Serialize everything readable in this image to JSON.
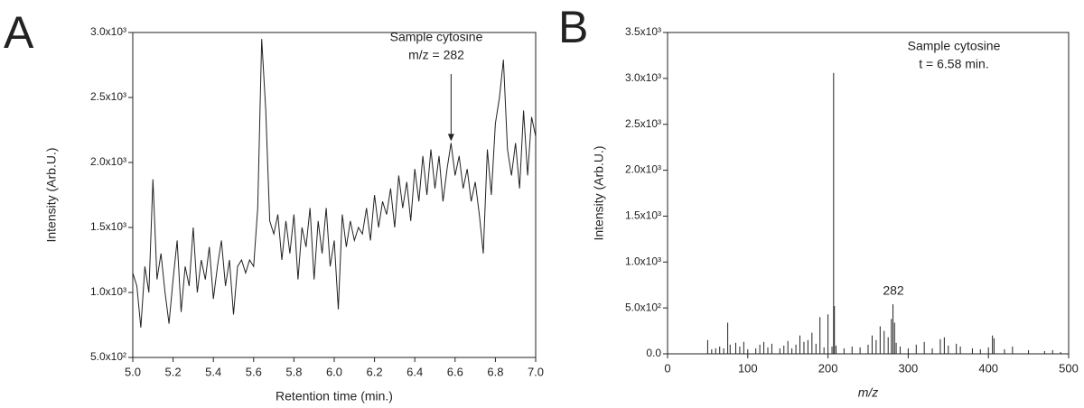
{
  "chart_data": [
    {
      "type": "line",
      "panel": "A",
      "xlabel": "Retention time (min.)",
      "ylabel": "Intensity (Arb.U.)",
      "color": "#222222",
      "x": [
        5.0,
        5.02,
        5.04,
        5.06,
        5.08,
        5.1,
        5.12,
        5.14,
        5.16,
        5.18,
        5.2,
        5.22,
        5.24,
        5.26,
        5.28,
        5.3,
        5.32,
        5.34,
        5.36,
        5.38,
        5.4,
        5.42,
        5.44,
        5.46,
        5.48,
        5.5,
        5.52,
        5.54,
        5.56,
        5.58,
        5.6,
        5.62,
        5.64,
        5.66,
        5.68,
        5.7,
        5.72,
        5.74,
        5.76,
        5.78,
        5.8,
        5.82,
        5.84,
        5.86,
        5.88,
        5.9,
        5.92,
        5.94,
        5.96,
        5.98,
        6.0,
        6.02,
        6.04,
        6.06,
        6.08,
        6.1,
        6.12,
        6.14,
        6.16,
        6.18,
        6.2,
        6.22,
        6.24,
        6.26,
        6.28,
        6.3,
        6.32,
        6.34,
        6.36,
        6.38,
        6.4,
        6.42,
        6.44,
        6.46,
        6.48,
        6.5,
        6.52,
        6.54,
        6.56,
        6.58,
        6.6,
        6.62,
        6.64,
        6.66,
        6.68,
        6.7,
        6.72,
        6.74,
        6.76,
        6.78,
        6.8,
        6.82,
        6.84,
        6.86,
        6.88,
        6.9,
        6.92,
        6.94,
        6.96,
        6.98,
        7.0
      ],
      "values": [
        1150,
        1050,
        730,
        1200,
        1000,
        1870,
        1100,
        1300,
        1000,
        760,
        1100,
        1400,
        850,
        1200,
        1050,
        1500,
        1000,
        1250,
        1100,
        1350,
        950,
        1200,
        1400,
        1050,
        1250,
        830,
        1200,
        1250,
        1150,
        1250,
        1200,
        1650,
        2950,
        2400,
        1550,
        1450,
        1600,
        1250,
        1550,
        1300,
        1600,
        1100,
        1500,
        1350,
        1650,
        1100,
        1550,
        1300,
        1650,
        1200,
        1400,
        870,
        1600,
        1350,
        1550,
        1400,
        1500,
        1450,
        1650,
        1400,
        1750,
        1500,
        1700,
        1600,
        1800,
        1500,
        1900,
        1650,
        1850,
        1550,
        1950,
        1700,
        2050,
        1750,
        2100,
        1800,
        2050,
        1700,
        1950,
        2150,
        1900,
        2050,
        1800,
        1950,
        1700,
        1850,
        1600,
        1300,
        2100,
        1750,
        2300,
        2500,
        2790,
        2100,
        1900,
        2150,
        1800,
        2400,
        1900,
        2350,
        2200
      ],
      "xlim": [
        5.0,
        7.0
      ],
      "xticks": [
        {
          "value": 5.0,
          "label": "5.0"
        },
        5.2,
        5.4,
        5.6,
        5.8,
        {
          "value": 6.0,
          "label": "6.0"
        },
        6.2,
        6.4,
        6.6,
        6.8,
        {
          "value": 7.0,
          "label": "7.0"
        }
      ],
      "ylim": [
        500,
        3000
      ],
      "yticks": [
        {
          "value": 500,
          "label": "5.0x10²"
        },
        {
          "value": 1000,
          "label": "1.0x10³"
        },
        {
          "value": 1500,
          "label": "1.5x10³"
        },
        {
          "value": 2000,
          "label": "2.0x10³"
        },
        {
          "value": 2500,
          "label": "2.5x10³"
        },
        {
          "value": 3000,
          "label": "3.0x10³"
        }
      ],
      "annotation": {
        "lines": [
          "Sample cytosine",
          "m/z = 282"
        ],
        "x": 6.58,
        "y": 2150
      }
    },
    {
      "type": "stem",
      "panel": "B",
      "xlabel": "m/z",
      "ylabel": "Intensity (Arb.U.)",
      "color": "#222222",
      "x": [
        50,
        55,
        60,
        65,
        70,
        75,
        78,
        85,
        90,
        95,
        100,
        110,
        115,
        120,
        125,
        130,
        140,
        145,
        150,
        155,
        160,
        165,
        170,
        175,
        180,
        185,
        190,
        195,
        200,
        205,
        207,
        208,
        210,
        220,
        230,
        240,
        250,
        255,
        260,
        265,
        270,
        275,
        279,
        281,
        283,
        285,
        290,
        300,
        310,
        320,
        330,
        340,
        345,
        350,
        360,
        365,
        380,
        390,
        400,
        405,
        407,
        420,
        430,
        450,
        470,
        480,
        490
      ],
      "values": [
        150,
        50,
        60,
        80,
        60,
        340,
        100,
        120,
        80,
        130,
        50,
        60,
        100,
        130,
        70,
        110,
        60,
        90,
        140,
        60,
        100,
        200,
        130,
        150,
        230,
        110,
        400,
        70,
        430,
        80,
        3060,
        520,
        90,
        60,
        80,
        70,
        100,
        200,
        150,
        300,
        250,
        180,
        380,
        540,
        340,
        120,
        80,
        60,
        100,
        130,
        60,
        160,
        180,
        90,
        110,
        80,
        60,
        50,
        70,
        200,
        170,
        50,
        80,
        40,
        30,
        40,
        20
      ],
      "xlim": [
        0,
        500
      ],
      "xticks": [
        0,
        100,
        200,
        300,
        400,
        500
      ],
      "ylim": [
        0,
        3500
      ],
      "yticks": [
        {
          "value": 0,
          "label": "0.0"
        },
        {
          "value": 500,
          "label": "5.0x10²"
        },
        {
          "value": 1000,
          "label": "1.0x10³"
        },
        {
          "value": 1500,
          "label": "1.5x10³"
        },
        {
          "value": 2000,
          "label": "2.0x10³"
        },
        {
          "value": 2500,
          "label": "2.5x10³"
        },
        {
          "value": 3000,
          "label": "3.0x10³"
        },
        {
          "value": 3500,
          "label": "3.5x10³"
        }
      ],
      "annotation": {
        "lines": [
          "Sample cytosine",
          "t = 6.58 min."
        ],
        "peak_label": "282"
      }
    }
  ]
}
